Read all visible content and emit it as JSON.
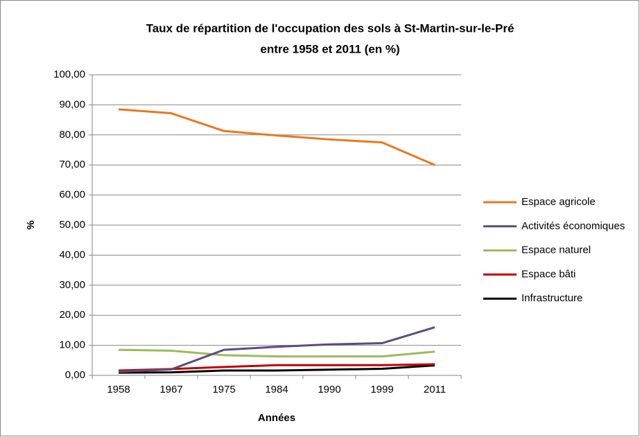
{
  "chart_data": {
    "type": "line",
    "title": [
      "Taux de répartition de l'occupation des sols à St-Martin-sur-le-Pré",
      "entre 1958 et 2011 (en %)"
    ],
    "x_label": "Années",
    "y_label": "%",
    "categories": [
      "1958",
      "1967",
      "1975",
      "1984",
      "1990",
      "1999",
      "2011"
    ],
    "series": [
      {
        "name": "Espace agricole",
        "color": "#e9781e",
        "values": [
          88.5,
          87.2,
          81.3,
          79.8,
          78.5,
          77.5,
          70.0
        ]
      },
      {
        "name": "Activités économiques",
        "color": "#604a7b",
        "values": [
          1.2,
          2.0,
          8.5,
          9.5,
          10.3,
          10.7,
          16.0
        ]
      },
      {
        "name": "Espace naturel",
        "color": "#9bbb59",
        "values": [
          8.5,
          8.2,
          6.7,
          6.3,
          6.3,
          6.3,
          7.9
        ]
      },
      {
        "name": "Espace bâti",
        "color": "#c00000",
        "values": [
          1.6,
          2.1,
          2.8,
          3.4,
          3.4,
          3.4,
          3.7
        ]
      },
      {
        "name": "Infrastructure",
        "color": "#000000",
        "values": [
          0.9,
          1.0,
          1.6,
          1.6,
          1.9,
          2.2,
          3.3
        ]
      }
    ],
    "ylim": [
      0,
      100
    ],
    "yticks": [
      {
        "value": 0,
        "label": "0,00"
      },
      {
        "value": 10,
        "label": "10,00"
      },
      {
        "value": 20,
        "label": "20,00"
      },
      {
        "value": 30,
        "label": "30,00"
      },
      {
        "value": 40,
        "label": "40,00"
      },
      {
        "value": 50,
        "label": "50,00"
      },
      {
        "value": 60,
        "label": "60,00"
      },
      {
        "value": 70,
        "label": "70,00"
      },
      {
        "value": 80,
        "label": "80,00"
      },
      {
        "value": 90,
        "label": "90,00"
      },
      {
        "value": 100,
        "label": "100,00"
      }
    ],
    "grid": true,
    "legend": "right"
  }
}
